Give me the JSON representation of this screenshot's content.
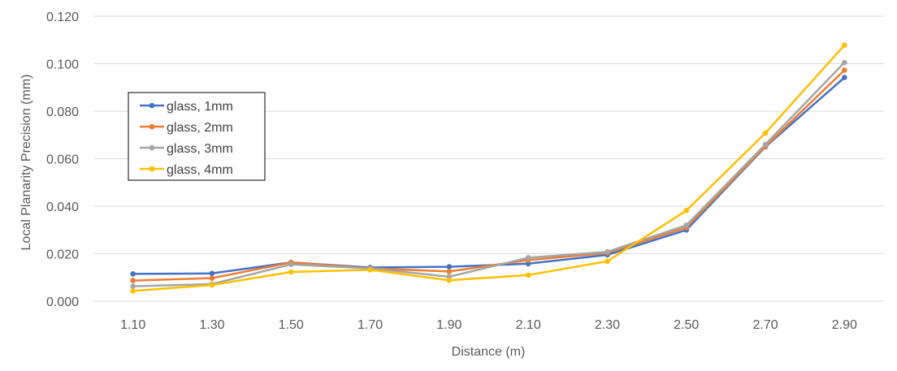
{
  "chart_data": {
    "type": "line",
    "title": "",
    "xlabel": "Distance (m)",
    "ylabel": "Local Planarity Precision (mm)",
    "categories": [
      "1.10",
      "1.30",
      "1.50",
      "1.70",
      "1.90",
      "2.10",
      "2.30",
      "2.50",
      "2.70",
      "2.90"
    ],
    "ylim": [
      0,
      0.12
    ],
    "y_ticks": [
      "0.000",
      "0.020",
      "0.040",
      "0.060",
      "0.080",
      "0.100",
      "0.120"
    ],
    "y_tick_values": [
      0,
      0.02,
      0.04,
      0.06,
      0.08,
      0.1,
      0.12
    ],
    "grid": "horizontal",
    "legend_position": "left",
    "series": [
      {
        "name": "glass, 1mm",
        "color": "#4472c4",
        "values": [
          0.0115,
          0.0117,
          0.0163,
          0.0142,
          0.0145,
          0.0158,
          0.0195,
          0.03,
          0.065,
          0.0942
        ]
      },
      {
        "name": "glass, 2mm",
        "color": "#ed7d31",
        "values": [
          0.0087,
          0.0097,
          0.0163,
          0.0138,
          0.0125,
          0.0173,
          0.0203,
          0.031,
          0.0652,
          0.0973
        ]
      },
      {
        "name": "glass, 3mm",
        "color": "#a5a5a5",
        "values": [
          0.0063,
          0.0072,
          0.0155,
          0.0138,
          0.0103,
          0.0183,
          0.0208,
          0.032,
          0.066,
          0.1005
        ]
      },
      {
        "name": "glass, 4mm",
        "color": "#ffc000",
        "values": [
          0.0043,
          0.0068,
          0.0123,
          0.0132,
          0.0088,
          0.011,
          0.0168,
          0.0382,
          0.0708,
          0.1078
        ]
      }
    ]
  }
}
